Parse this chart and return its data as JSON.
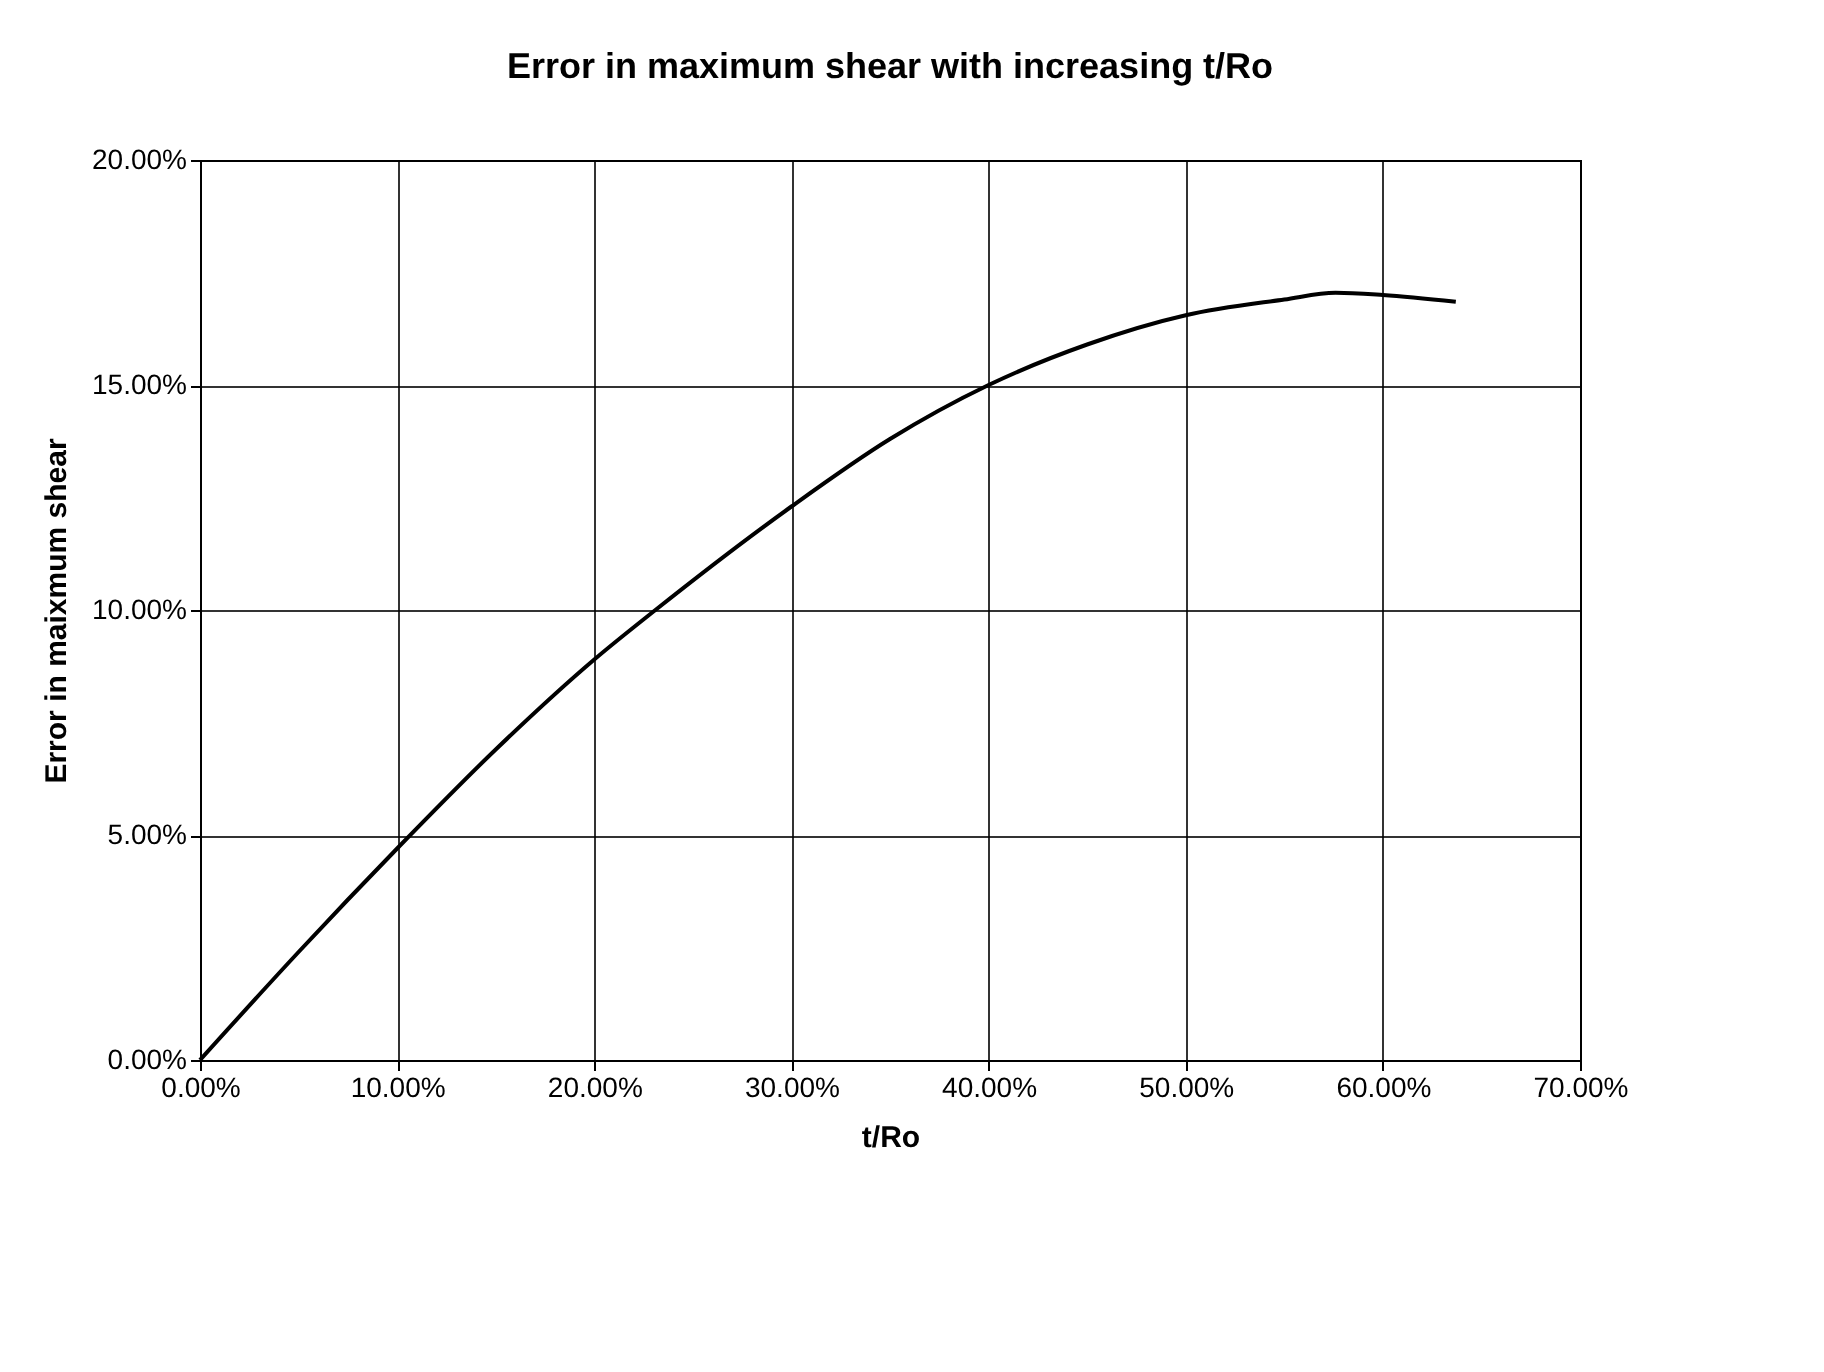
{
  "chart_data": {
    "type": "line",
    "title": "Error in maximum shear with increasing t/Ro",
    "xlabel": "t/Ro",
    "ylabel": "Error in maixmum shear",
    "x": [
      0,
      5,
      10,
      15,
      20,
      23.1,
      30,
      35,
      40,
      45,
      50,
      55,
      57.6,
      60,
      63.7
    ],
    "series": [
      {
        "color": "#000000",
        "values": [
          0,
          2.4,
          4.7,
          6.9,
          8.9,
          10,
          12.3,
          13.8,
          15,
          15.9,
          16.55,
          16.9,
          17.05,
          17.0,
          16.85
        ]
      }
    ],
    "xlim": [
      0,
      70
    ],
    "ylim": [
      0,
      20
    ],
    "xticks": [
      {
        "value": 0,
        "label": "0.00%"
      },
      {
        "value": 10,
        "label": "10.00%"
      },
      {
        "value": 20,
        "label": "20.00%"
      },
      {
        "value": 30,
        "label": "30.00%"
      },
      {
        "value": 40,
        "label": "40.00%"
      },
      {
        "value": 50,
        "label": "50.00%"
      },
      {
        "value": 60,
        "label": "60.00%"
      },
      {
        "value": 70,
        "label": "70.00%"
      }
    ],
    "yticks": [
      {
        "value": 0,
        "label": "0.00%"
      },
      {
        "value": 5,
        "label": "5.00%"
      },
      {
        "value": 10,
        "label": "10.00%"
      },
      {
        "value": 15,
        "label": "15.00%"
      },
      {
        "value": 20,
        "label": "20.00%"
      }
    ],
    "grid": true,
    "marker": "none",
    "line_style": "solid"
  }
}
